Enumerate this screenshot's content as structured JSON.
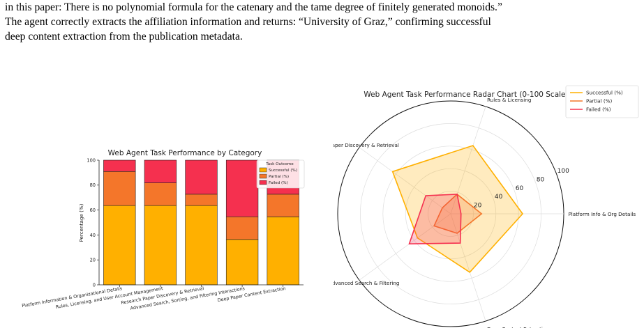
{
  "paragraph": {
    "lines": [
      "in this paper: There is no polynomial formula for the catenary and the tame degree of finitely generated monoids.”",
      "The agent correctly extracts the affiliation information and returns: “University of Graz,” confirming successful",
      "deep content extraction from the publication metadata."
    ]
  },
  "chart_data": [
    {
      "type": "bar",
      "stacked": true,
      "title": "Web Agent Task Performance by Category",
      "xlabel": "",
      "ylabel": "Percentage (%)",
      "ylim": [
        0,
        100
      ],
      "yticks": [
        "0",
        "20",
        "40",
        "60",
        "80",
        "100"
      ],
      "categories": [
        "Platform Information & Organizational Details",
        "Rules, Licensing, and User Account Management",
        "Research Paper Discovery & Retrieval",
        "Advanced Search, Sorting, and Filtering Interactions",
        "Deep Paper Content Extraction"
      ],
      "series": [
        {
          "name": "Successful (%)",
          "color": "#ffb000",
          "values": [
            63.6,
            63.6,
            63.6,
            36.4,
            54.5
          ]
        },
        {
          "name": "Partial (%)",
          "color": "#f4762a",
          "values": [
            27.3,
            18.2,
            9.1,
            18.2,
            18.2
          ]
        },
        {
          "name": "Failed (%)",
          "color": "#f5304f",
          "values": [
            9.1,
            18.2,
            27.3,
            45.4,
            27.3
          ]
        }
      ],
      "legend": {
        "title": "Task Outcome",
        "placement": "top-right"
      },
      "grid": false
    },
    {
      "type": "radar",
      "title": "Web Agent Task Performance Radar Chart (0-100 Scale)",
      "categories": [
        "Platform Info & Org Details",
        "Rules & Licensing",
        "Paper Discovery & Retrieval",
        "Advanced Search & Filtering",
        "Deep Content Extraction"
      ],
      "rlim": [
        0,
        100
      ],
      "rticks": [
        "20",
        "40",
        "60",
        "80",
        "100"
      ],
      "series": [
        {
          "name": "Successful (%)",
          "color": "#ffb000",
          "values": [
            63.6,
            63.6,
            63.6,
            36.4,
            54.5
          ]
        },
        {
          "name": "Partial (%)",
          "color": "#f4762a",
          "values": [
            27.3,
            18.2,
            9.1,
            18.2,
            18.2
          ]
        },
        {
          "name": "Failed (%)",
          "color": "#f5304f",
          "values": [
            9.1,
            18.2,
            27.3,
            45.4,
            27.3
          ]
        }
      ],
      "legend": {
        "placement": "top-right"
      },
      "grid": true
    }
  ]
}
